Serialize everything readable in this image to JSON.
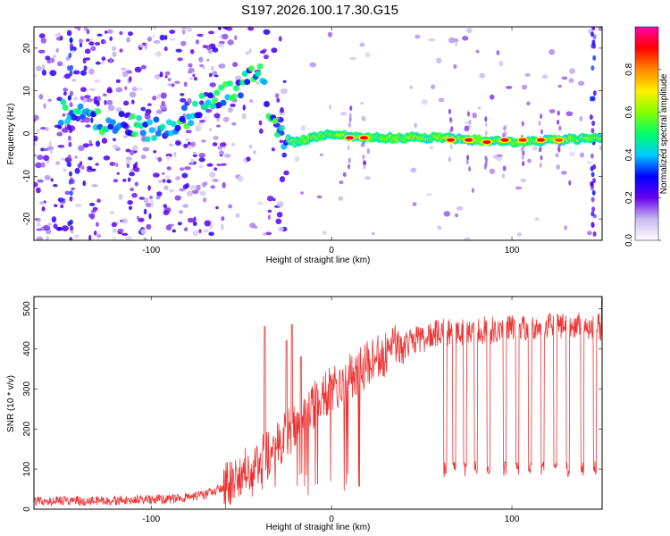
{
  "figure": {
    "title": "S197.2026.100.17.30.G15"
  },
  "chart_data": [
    {
      "type": "heatmap",
      "title": "S197.2026.100.17.30.G15",
      "xlabel": "Height of straight line (km)",
      "ylabel": "Frequency (Hz)",
      "xlim": [
        -165,
        150
      ],
      "ylim": [
        -25,
        25
      ],
      "xticks": [
        -100,
        0,
        100
      ],
      "yticks": [
        -20,
        -10,
        0,
        10,
        20
      ],
      "colorbar": {
        "label": "Normalized spectral amplitude",
        "range": [
          0.0,
          1.0
        ],
        "ticks": [
          0.0,
          0.2,
          0.4,
          0.6,
          0.8
        ],
        "tick_labels": [
          "0.0",
          "0.2",
          "0.4",
          "0.6",
          "0.8"
        ],
        "colors": [
          "#ffffff",
          "#c8b8f0",
          "#6600ee",
          "#0000ff",
          "#00ccff",
          "#00ff66",
          "#88ff00",
          "#ffee00",
          "#ff8800",
          "#ff0000",
          "#ff00aa"
        ]
      },
      "ridge": {
        "description": "drifting tone below -25 km, steady tone near 0 Hz above -25 km",
        "points": [
          {
            "x": -145,
            "y": 5
          },
          {
            "x": -130,
            "y": 3
          },
          {
            "x": -115,
            "y": 2
          },
          {
            "x": -100,
            "y": 1
          },
          {
            "x": -90,
            "y": 2
          },
          {
            "x": -80,
            "y": 4
          },
          {
            "x": -70,
            "y": 7
          },
          {
            "x": -60,
            "y": 9
          },
          {
            "x": -50,
            "y": 11
          },
          {
            "x": -40,
            "y": 15
          },
          {
            "x": -35,
            "y": 6
          },
          {
            "x": -28,
            "y": -1
          },
          {
            "x": -20,
            "y": -2
          },
          {
            "x": 0,
            "y": 0
          },
          {
            "x": 20,
            "y": -1
          },
          {
            "x": 60,
            "y": -1
          },
          {
            "x": 100,
            "y": -2
          },
          {
            "x": 150,
            "y": -1
          }
        ],
        "peaks": [
          {
            "x": 10,
            "y": -1,
            "amp": 0.95
          },
          {
            "x": 18,
            "y": -1,
            "amp": 0.9
          },
          {
            "x": 66,
            "y": -1.5,
            "amp": 0.92
          },
          {
            "x": 76,
            "y": -1.5,
            "amp": 0.9
          },
          {
            "x": 86,
            "y": -2,
            "amp": 0.9
          },
          {
            "x": 96,
            "y": -1.5,
            "amp": 0.92
          },
          {
            "x": 106,
            "y": -1.5,
            "amp": 0.88
          },
          {
            "x": 116,
            "y": -1.5,
            "amp": 0.9
          },
          {
            "x": 126,
            "y": -1.5,
            "amp": 0.85
          }
        ]
      }
    },
    {
      "type": "line",
      "xlabel": "Height of straight line (km)",
      "ylabel": "SNR (10 * v/v)",
      "xlim": [
        -165,
        150
      ],
      "ylim": [
        0,
        530
      ],
      "xticks": [
        -100,
        0,
        100
      ],
      "yticks": [
        0,
        100,
        200,
        300,
        400,
        500
      ],
      "series": [
        {
          "name": "SNR",
          "color": "#ee3333",
          "envelope": [
            {
              "x": -165,
              "y": 20
            },
            {
              "x": -120,
              "y": 22
            },
            {
              "x": -90,
              "y": 25
            },
            {
              "x": -70,
              "y": 35
            },
            {
              "x": -60,
              "y": 55
            },
            {
              "x": -50,
              "y": 90
            },
            {
              "x": -40,
              "y": 120
            },
            {
              "x": -30,
              "y": 160
            },
            {
              "x": -20,
              "y": 210
            },
            {
              "x": -10,
              "y": 260
            },
            {
              "x": 0,
              "y": 300
            },
            {
              "x": 10,
              "y": 330
            },
            {
              "x": 20,
              "y": 360
            },
            {
              "x": 30,
              "y": 390
            },
            {
              "x": 40,
              "y": 410
            },
            {
              "x": 50,
              "y": 425
            },
            {
              "x": 60,
              "y": 440
            },
            {
              "x": 80,
              "y": 445
            },
            {
              "x": 100,
              "y": 450
            },
            {
              "x": 120,
              "y": 455
            },
            {
              "x": 150,
              "y": 455
            }
          ],
          "dips": [
            {
              "x": 63,
              "y": 100
            },
            {
              "x": 68,
              "y": 100
            },
            {
              "x": 74,
              "y": 100
            },
            {
              "x": 80,
              "y": 100
            },
            {
              "x": 87,
              "y": 100
            },
            {
              "x": 96,
              "y": 100
            },
            {
              "x": 103,
              "y": 100
            },
            {
              "x": 110,
              "y": 100
            },
            {
              "x": 117,
              "y": 100
            },
            {
              "x": 124,
              "y": 100
            },
            {
              "x": 131,
              "y": 100
            },
            {
              "x": 139,
              "y": 100
            },
            {
              "x": 146,
              "y": 100
            }
          ],
          "spikes": [
            {
              "x": -37,
              "y": 455
            },
            {
              "x": -25,
              "y": 420
            },
            {
              "x": -22,
              "y": 460
            },
            {
              "x": -17,
              "y": 380
            },
            {
              "x": 150,
              "y": 530
            }
          ]
        }
      ]
    }
  ]
}
